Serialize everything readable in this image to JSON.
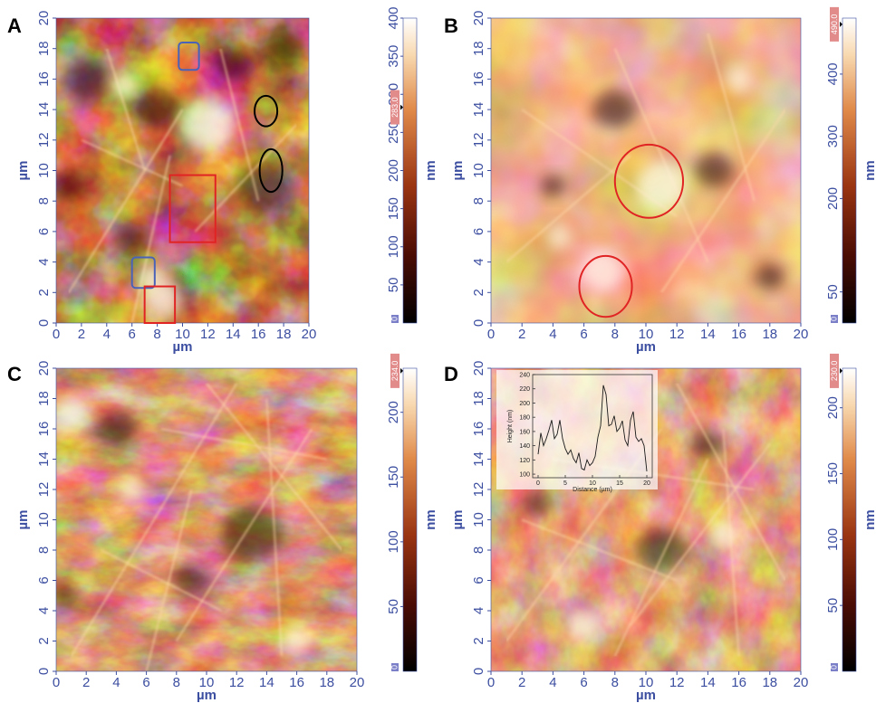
{
  "panels": [
    {
      "id": "A",
      "label": "A",
      "xlabel": "µm",
      "ylabel": "µm",
      "x_ticks": [
        "0",
        "2",
        "4",
        "6",
        "8",
        "10",
        "12",
        "14",
        "16",
        "18",
        "20"
      ],
      "y_ticks": [
        "0",
        "2",
        "4",
        "6",
        "8",
        "10",
        "12",
        "14",
        "16",
        "18",
        "20"
      ],
      "colorbar": {
        "unit": "nm",
        "ticks": [
          "0",
          "50",
          "100",
          "150",
          "200",
          "250",
          "300",
          "350",
          "400"
        ],
        "max": 400,
        "marker_label": "283.0",
        "marker_value": 283,
        "zero_label": "0"
      }
    },
    {
      "id": "B",
      "label": "B",
      "xlabel": "µm",
      "ylabel": "µm",
      "x_ticks": [
        "0",
        "2",
        "4",
        "6",
        "8",
        "10",
        "12",
        "14",
        "16",
        "18",
        "20"
      ],
      "y_ticks": [
        "0",
        "2",
        "4",
        "6",
        "8",
        "10",
        "12",
        "14",
        "16",
        "18",
        "20"
      ],
      "colorbar": {
        "unit": "nm",
        "ticks": [
          "0",
          "50",
          "200",
          "300",
          "400"
        ],
        "tick_values": [
          0,
          50,
          200,
          300,
          400
        ],
        "max": 490,
        "marker_label": "490.0",
        "marker_value": 480,
        "zero_label": "0"
      }
    },
    {
      "id": "C",
      "label": "C",
      "xlabel": "µm",
      "ylabel": "µm",
      "x_ticks": [
        "0",
        "2",
        "4",
        "6",
        "8",
        "10",
        "12",
        "14",
        "16",
        "18",
        "20"
      ],
      "y_ticks": [
        "0",
        "2",
        "4",
        "6",
        "8",
        "10",
        "12",
        "14",
        "16",
        "18",
        "20"
      ],
      "colorbar": {
        "unit": "nm",
        "ticks": [
          "0",
          "50",
          "100",
          "150",
          "200"
        ],
        "max": 234,
        "marker_label": "234.0",
        "marker_value": 232,
        "zero_label": "0"
      }
    },
    {
      "id": "D",
      "label": "D",
      "xlabel": "µm",
      "ylabel": "µm",
      "x_ticks": [
        "0",
        "2",
        "4",
        "6",
        "8",
        "10",
        "12",
        "14",
        "16",
        "18",
        "20"
      ],
      "y_ticks": [
        "0",
        "2",
        "4",
        "6",
        "8",
        "10",
        "12",
        "14",
        "16",
        "18",
        "20"
      ],
      "colorbar": {
        "unit": "nm",
        "ticks": [
          "0",
          "50",
          "100",
          "150",
          "200"
        ],
        "max": 230,
        "marker_label": "230.0",
        "marker_value": 228,
        "zero_label": "0"
      }
    }
  ],
  "inset": {
    "xlabel": "Distance (µm)",
    "ylabel": "Height (nm)",
    "x_ticks": [
      "0",
      "5",
      "10",
      "15",
      "20"
    ],
    "y_ticks": [
      "100",
      "120",
      "140",
      "160",
      "180",
      "200",
      "220",
      "240"
    ],
    "chart_data": {
      "type": "line",
      "xlim": [
        -1,
        21
      ],
      "ylim": [
        95,
        240
      ],
      "x": [
        0,
        0.5,
        1,
        1.5,
        2,
        2.5,
        3,
        3.5,
        4,
        4.5,
        5,
        5.5,
        6,
        6.5,
        7,
        7.5,
        8,
        8.5,
        9,
        9.5,
        10,
        10.5,
        11,
        11.5,
        12,
        12.5,
        13,
        13.5,
        14,
        14.5,
        15,
        15.5,
        16,
        16.5,
        17,
        17.5,
        18,
        18.5,
        19,
        19.5,
        20
      ],
      "y": [
        128,
        158,
        140,
        150,
        162,
        176,
        150,
        156,
        176,
        150,
        136,
        128,
        134,
        122,
        116,
        130,
        108,
        106,
        120,
        112,
        116,
        125,
        152,
        168,
        225,
        212,
        168,
        170,
        182,
        160,
        165,
        175,
        148,
        140,
        176,
        188,
        152,
        146,
        150,
        140,
        104
      ]
    }
  },
  "annotations": {
    "blue_squares_A": [
      {
        "x": 10.5,
        "y": 17.5,
        "w": 1.6,
        "h": 1.8
      },
      {
        "x": 6.9,
        "y": 3.3,
        "w": 1.8,
        "h": 2.0
      }
    ],
    "red_squares_A": [
      {
        "x": 10.8,
        "y": 7.5,
        "w": 3.6,
        "h": 4.4
      },
      {
        "x": 8.2,
        "y": 1.2,
        "w": 2.4,
        "h": 2.4
      }
    ],
    "black_ellipses_A": [
      {
        "x": 16.6,
        "y": 13.9,
        "rx": 0.9,
        "ry": 1.0
      },
      {
        "x": 17.0,
        "y": 10.0,
        "rx": 0.9,
        "ry": 1.4
      }
    ],
    "red_ellipses_B": [
      {
        "x": 10.2,
        "y": 9.3,
        "rx": 2.2,
        "ry": 2.4
      },
      {
        "x": 7.4,
        "y": 2.4,
        "rx": 1.7,
        "ry": 2.0
      }
    ]
  }
}
